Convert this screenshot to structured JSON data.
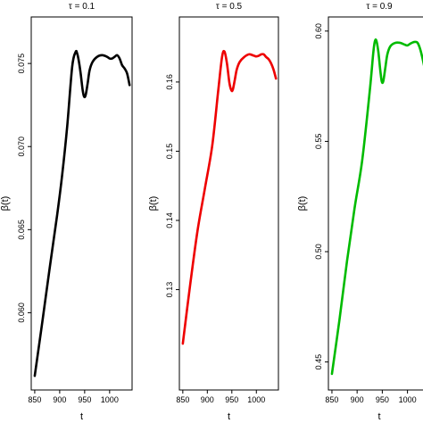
{
  "chart_data": [
    {
      "type": "line",
      "title": "τ = 0.1",
      "xlabel": "t",
      "ylabel": "β(t)",
      "color": "#000000",
      "xlim": [
        843,
        1045
      ],
      "ylim": [
        0.05535,
        0.0778
      ],
      "xticks": [
        850,
        900,
        950,
        1000
      ],
      "xtick_labels": [
        "850",
        "900",
        "950",
        "1000"
      ],
      "yticks": [
        0.06,
        0.065,
        0.07,
        0.075
      ],
      "ytick_labels": [
        "0.060",
        "0.065",
        "0.070",
        "0.075"
      ],
      "grid": false,
      "x": [
        850,
        865,
        880,
        895,
        905,
        915,
        925,
        932,
        935,
        938,
        942,
        946,
        949,
        952,
        956,
        960,
        966,
        975,
        985,
        995,
        1000,
        1005,
        1010,
        1015,
        1020,
        1025,
        1030,
        1035,
        1040
      ],
      "y": [
        0.0562,
        0.0594,
        0.0627,
        0.0659,
        0.0683,
        0.0712,
        0.0748,
        0.0757,
        0.0756,
        0.0752,
        0.0744,
        0.0734,
        0.073,
        0.0731,
        0.0738,
        0.0746,
        0.0751,
        0.0754,
        0.0755,
        0.0754,
        0.0753,
        0.0753,
        0.0754,
        0.0755,
        0.0753,
        0.0749,
        0.0747,
        0.0744,
        0.0737
      ]
    },
    {
      "type": "line",
      "title": "τ = 0.5",
      "xlabel": "t",
      "ylabel": "β(t)",
      "color": "#ee0000",
      "xlim": [
        843,
        1045
      ],
      "ylim": [
        0.1155,
        0.1694
      ],
      "xticks": [
        850,
        900,
        950,
        1000
      ],
      "xtick_labels": [
        "850",
        "900",
        "950",
        "1000"
      ],
      "yticks": [
        0.13,
        0.14,
        0.15,
        0.16
      ],
      "ytick_labels": [
        "0.13",
        "0.14",
        "0.15",
        "0.16"
      ],
      "grid": false,
      "x": [
        850,
        865,
        880,
        895,
        910,
        922,
        930,
        935,
        940,
        945,
        949,
        952,
        956,
        960,
        966,
        975,
        985,
        995,
        1000,
        1005,
        1010,
        1015,
        1020,
        1025,
        1030,
        1035,
        1040
      ],
      "y": [
        0.1222,
        0.1307,
        0.1385,
        0.1446,
        0.1508,
        0.1586,
        0.1636,
        0.1644,
        0.1627,
        0.1599,
        0.1588,
        0.1589,
        0.1603,
        0.1618,
        0.1629,
        0.1636,
        0.164,
        0.1638,
        0.1637,
        0.1638,
        0.164,
        0.164,
        0.1636,
        0.1633,
        0.1627,
        0.1618,
        0.1605
      ]
    },
    {
      "type": "line",
      "title": "τ = 0.9",
      "xlabel": "t",
      "ylabel": "β(t)",
      "color": "#00bb00",
      "xlim": [
        843,
        1045
      ],
      "ylim": [
        0.4373,
        0.6064
      ],
      "xticks": [
        850,
        900,
        950,
        1000
      ],
      "xtick_labels": [
        "850",
        "900",
        "950",
        "1000"
      ],
      "yticks": [
        0.45,
        0.5,
        0.55,
        0.6
      ],
      "ytick_labels": [
        "0.45",
        "0.50",
        "0.55",
        "0.60"
      ],
      "grid": false,
      "x": [
        850,
        865,
        880,
        895,
        910,
        925,
        932,
        935,
        938,
        942,
        946,
        949,
        952,
        956,
        960,
        966,
        975,
        985,
        995,
        1000,
        1005,
        1010,
        1015,
        1020,
        1025,
        1030,
        1035,
        1040
      ],
      "y": [
        0.4446,
        0.4692,
        0.4958,
        0.5198,
        0.5412,
        0.5726,
        0.5899,
        0.5951,
        0.5958,
        0.5909,
        0.5822,
        0.5771,
        0.5773,
        0.5833,
        0.5894,
        0.5931,
        0.5946,
        0.5947,
        0.5938,
        0.5935,
        0.5942,
        0.5948,
        0.5951,
        0.5947,
        0.592,
        0.5875,
        0.582,
        0.576
      ]
    }
  ]
}
